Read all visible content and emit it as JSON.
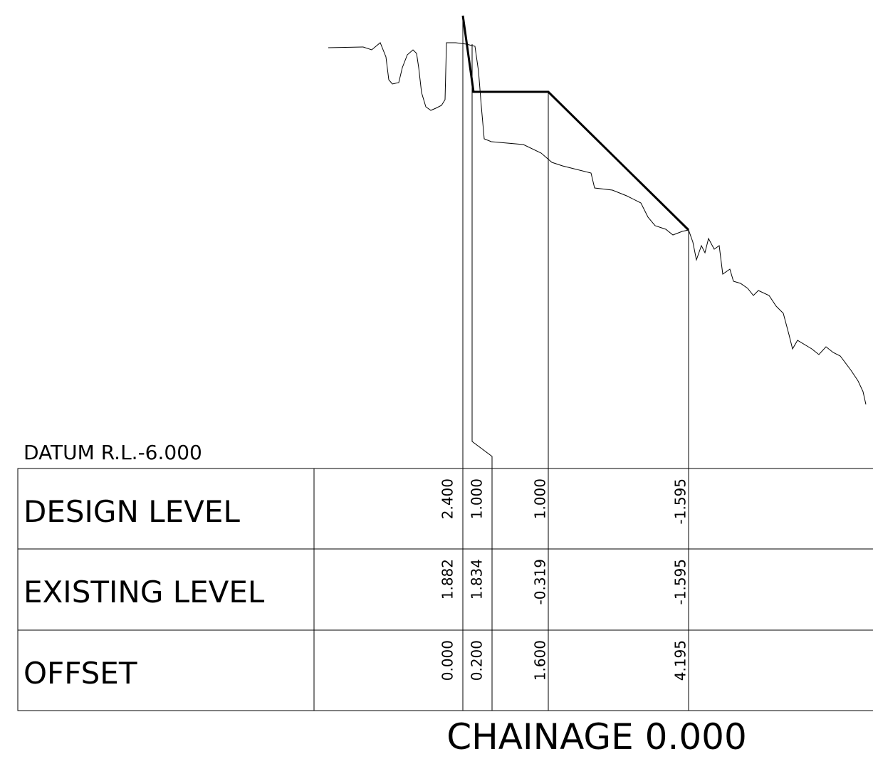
{
  "datum": "DATUM R.L.-6.000",
  "rows": [
    {
      "label": "DESIGN LEVEL",
      "values": [
        "2.400",
        "1.000",
        "1.000",
        "-1.595"
      ]
    },
    {
      "label": "EXISTING LEVEL",
      "values": [
        "1.882",
        "1.834",
        "-0.319",
        "-1.595"
      ]
    },
    {
      "label": "OFFSET",
      "values": [
        "0.000",
        "0.200",
        "1.600",
        "4.195"
      ]
    }
  ],
  "chainage": "CHAINAGE 0.000"
}
